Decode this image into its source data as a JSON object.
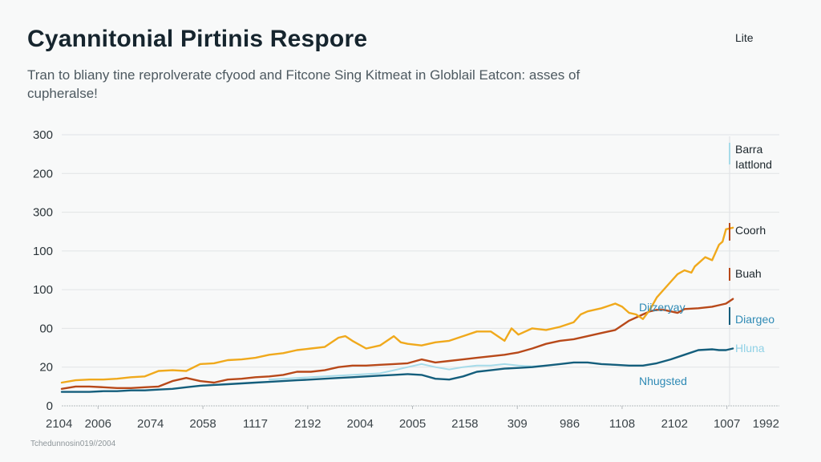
{
  "chart_data": {
    "type": "line",
    "title": "Cyannitonial Pirtinis Respore",
    "subtitle": "Tran to bliany tine reprolverate cfyood and Fitcone Sing Kitmeat in Globlail Eatcon: asses of cupheralse!",
    "source_note": "Tchedunnosin019//2004",
    "xlabel": "",
    "ylabel": "",
    "grid": true,
    "ylim": [
      0,
      350
    ],
    "y_ticks": [
      {
        "label": "300",
        "value": 350
      },
      {
        "label": "200",
        "value": 300
      },
      {
        "label": "300",
        "value": 250
      },
      {
        "label": "100",
        "value": 200
      },
      {
        "label": "100",
        "value": 150
      },
      {
        "label": "00",
        "value": 100
      },
      {
        "label": "20",
        "value": 50
      },
      {
        "label": "0",
        "value": 0
      }
    ],
    "x_ticks": [
      "2104",
      "2006",
      "2074",
      "2058",
      "1117",
      "2192",
      "2004",
      "2005",
      "2158",
      "309",
      "986",
      "1108",
      "2102",
      "1007",
      "1992"
    ],
    "x_range": [
      0,
      100
    ],
    "colors": {
      "yellow": "#f0a91c",
      "orange": "#b8491a",
      "teal": "#145e7c",
      "lightblue": "#a6dbe9",
      "label_blue": "#2f8ab5",
      "label_lightblue": "#8fd1e6",
      "grid": "#e1e4e6",
      "axis": "#b5babd"
    },
    "series": [
      {
        "name": "Lite",
        "color": "#f0a91c",
        "x": [
          0,
          2,
          4,
          6,
          8,
          10,
          12,
          14,
          16,
          18,
          20,
          22,
          24,
          26,
          28,
          30,
          32,
          34,
          36,
          38,
          40,
          41,
          42,
          44,
          46,
          48,
          49,
          50,
          52,
          54,
          56,
          58,
          60,
          62,
          64,
          65,
          66,
          68,
          70,
          72,
          74,
          75,
          76,
          78,
          80,
          81,
          82,
          83,
          84,
          85,
          86,
          88,
          89,
          90,
          91,
          91.5,
          92,
          93,
          94,
          95,
          95.5,
          96,
          97
        ],
        "values": [
          30,
          33,
          34,
          34,
          35,
          37,
          38,
          45,
          46,
          45,
          54,
          55,
          59,
          60,
          62,
          66,
          68,
          72,
          74,
          76,
          88,
          90,
          84,
          74,
          78,
          90,
          82,
          80,
          78,
          82,
          84,
          90,
          96,
          96,
          84,
          100,
          92,
          100,
          98,
          102,
          108,
          118,
          122,
          126,
          132,
          128,
          120,
          118,
          112,
          124,
          140,
          160,
          170,
          175,
          172,
          180,
          184,
          192,
          188,
          208,
          212,
          228,
          230
        ]
      },
      {
        "name": "Coorh",
        "color": "#b8491a",
        "x": [
          0,
          2,
          4,
          6,
          8,
          10,
          12,
          14,
          16,
          18,
          20,
          22,
          24,
          26,
          28,
          30,
          32,
          34,
          36,
          38,
          40,
          42,
          44,
          46,
          48,
          50,
          52,
          54,
          56,
          58,
          60,
          62,
          64,
          66,
          68,
          70,
          72,
          74,
          76,
          78,
          80,
          82,
          84,
          85,
          86,
          87,
          88,
          89,
          90,
          92,
          94,
          95,
          96,
          97
        ],
        "values": [
          22,
          25,
          25,
          24,
          23,
          23,
          24,
          25,
          32,
          36,
          32,
          30,
          34,
          35,
          37,
          38,
          40,
          44,
          44,
          46,
          50,
          52,
          52,
          53,
          54,
          55,
          60,
          56,
          58,
          60,
          62,
          64,
          66,
          69,
          74,
          80,
          84,
          86,
          90,
          94,
          98,
          110,
          118,
          122,
          124,
          124,
          122,
          120,
          125,
          126,
          128,
          130,
          132,
          138
        ]
      },
      {
        "name": "Dargeo",
        "color": "#145e7c",
        "x": [
          0,
          2,
          4,
          6,
          8,
          10,
          12,
          14,
          16,
          18,
          20,
          22,
          24,
          26,
          28,
          30,
          32,
          34,
          36,
          38,
          40,
          42,
          44,
          46,
          48,
          50,
          52,
          54,
          56,
          58,
          60,
          62,
          64,
          66,
          68,
          70,
          72,
          74,
          76,
          78,
          80,
          82,
          84,
          86,
          88,
          90,
          92,
          94,
          95,
          96,
          97
        ],
        "values": [
          18,
          18,
          18,
          19,
          19,
          20,
          20,
          21,
          22,
          24,
          26,
          27,
          28,
          29,
          30,
          31,
          32,
          33,
          34,
          35,
          36,
          37,
          38,
          39,
          40,
          41,
          40,
          35,
          34,
          38,
          44,
          46,
          48,
          49,
          50,
          52,
          54,
          56,
          56,
          54,
          53,
          52,
          52,
          55,
          60,
          66,
          72,
          73,
          72,
          72,
          74
        ]
      },
      {
        "name": "Hluna",
        "color": "#a6dbe9",
        "x": [
          30,
          34,
          38,
          42,
          46,
          48,
          50,
          52,
          54,
          56,
          58,
          60,
          62,
          64,
          66,
          68,
          70
        ],
        "values": [
          34,
          36,
          38,
          40,
          42,
          46,
          50,
          54,
          50,
          47,
          50,
          52,
          52,
          54,
          52,
          51,
          52
        ]
      }
    ],
    "annotations": [
      {
        "text": "Lite",
        "color": "#1b252b",
        "marker": "none"
      },
      {
        "text": "Barra",
        "color": "#1b252b",
        "marker": "#a6dbe9"
      },
      {
        "text": "Iattlond",
        "color": "#1b252b",
        "marker": "none"
      },
      {
        "text": "Coorh",
        "color": "#1b252b",
        "marker": "#b8491a"
      },
      {
        "text": "Buah",
        "color": "#1b252b",
        "marker": "#b8491a"
      },
      {
        "text": "Diizeryay",
        "color": "#2f8ab5",
        "marker": "none"
      },
      {
        "text": "Diargeo",
        "color": "#2f8ab5",
        "marker": "#145e7c"
      },
      {
        "text": "Hluna",
        "color": "#8fd1e6",
        "marker": "none"
      },
      {
        "text": "Nhugsted",
        "color": "#2f8ab5",
        "marker": "none"
      }
    ]
  }
}
